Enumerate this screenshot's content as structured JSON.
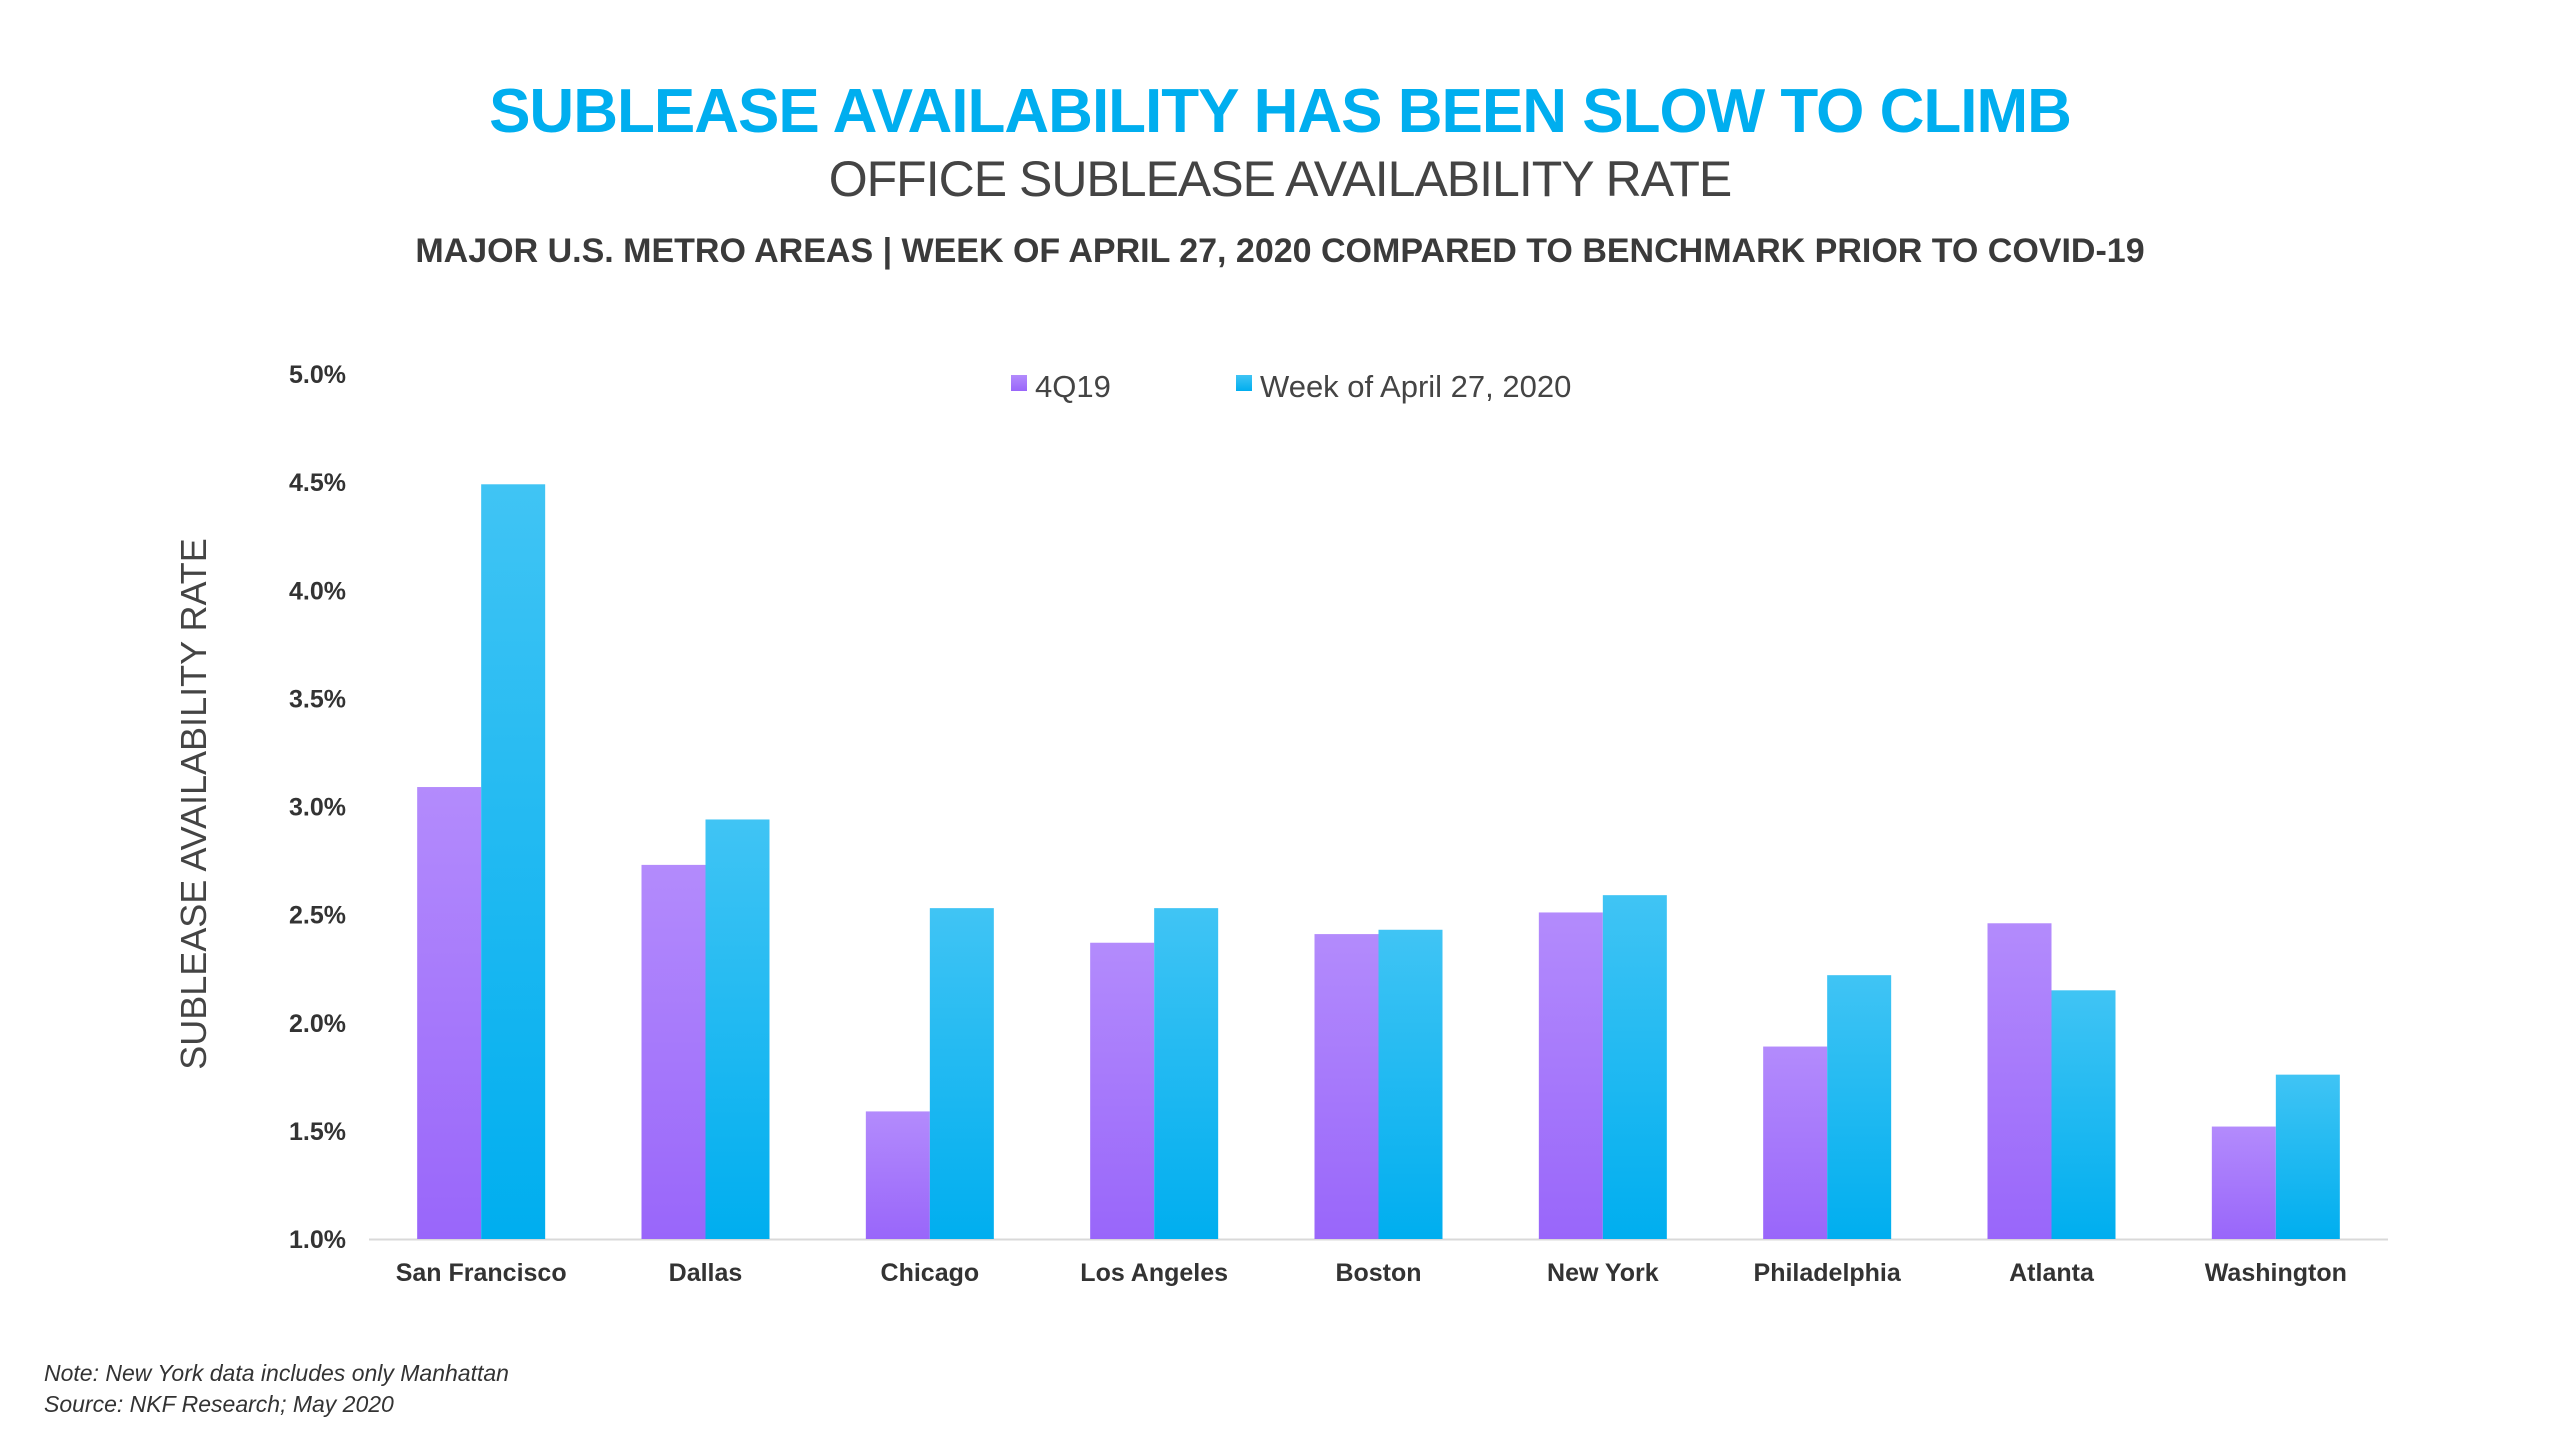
{
  "header": {
    "title": "SUBLEASE AVAILABILITY HAS BEEN SLOW TO CLIMB",
    "subtitle": "OFFICE SUBLEASE AVAILABILITY RATE",
    "description": "MAJOR U.S. METRO AREAS | WEEK OF APRIL 27, 2020 COMPARED TO BENCHMARK PRIOR TO COVID-19"
  },
  "footer": {
    "note": "Note: New York data includes only Manhattan",
    "source": "Source: NKF Research; May 2020"
  },
  "chart_data": {
    "type": "bar",
    "title": "OFFICE SUBLEASE AVAILABILITY RATE",
    "xlabel": "",
    "ylabel": "SUBLEASE AVAILABILITY RATE",
    "ylim": [
      1.0,
      5.0
    ],
    "yticks": [
      "1.0%",
      "1.5%",
      "2.0%",
      "2.5%",
      "3.0%",
      "3.5%",
      "4.0%",
      "4.5%",
      "5.0%"
    ],
    "legend_position": "top-center",
    "grid": false,
    "categories": [
      "San Francisco",
      "Dallas",
      "Chicago",
      "Los Angeles",
      "Boston",
      "New York",
      "Philadelphia",
      "Atlanta",
      "Washington"
    ],
    "series": [
      {
        "name": "4Q19",
        "color_top": "#b38bfc",
        "color": "#9966fa",
        "values": [
          3.09,
          2.73,
          1.59,
          2.37,
          2.41,
          2.51,
          1.89,
          2.46,
          1.52
        ]
      },
      {
        "name": "Week of April 27, 2020",
        "color_top": "#40c4f4",
        "color": "#00aeef",
        "values": [
          4.49,
          2.94,
          2.53,
          2.53,
          2.43,
          2.59,
          2.22,
          2.15,
          1.76
        ]
      }
    ]
  }
}
